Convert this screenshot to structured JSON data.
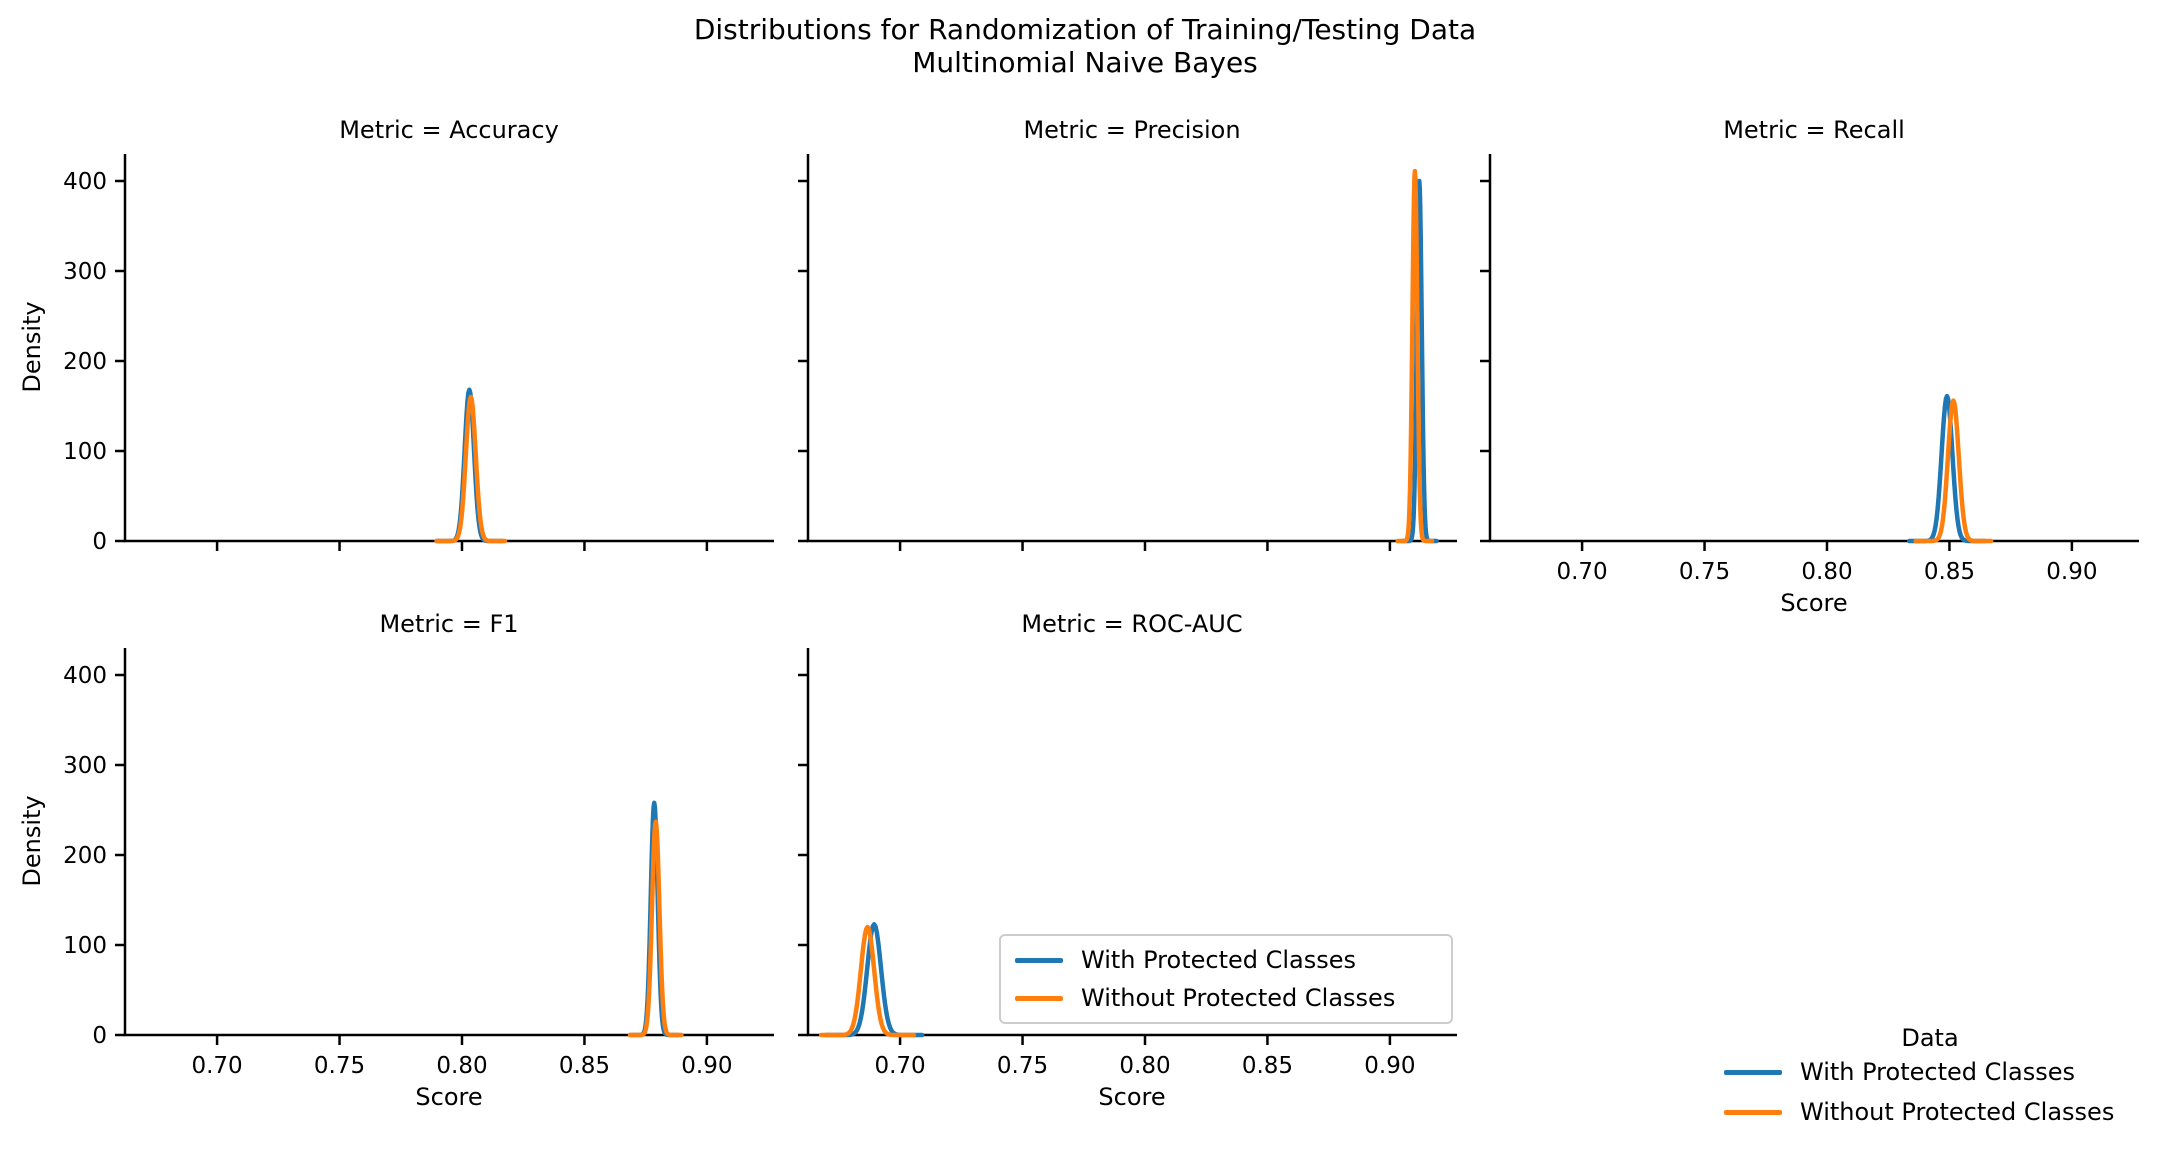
{
  "figure": {
    "title_line1": "Distributions for Randomization of Training/Testing Data",
    "title_line2": "Multinomial Naive Bayes"
  },
  "colors": {
    "with_protected": "#1f77b4",
    "without_protected": "#ff7f0e",
    "axis": "#000000",
    "text": "#000000",
    "legend_border": "#cccccc"
  },
  "series": [
    {
      "label": "With Protected Classes",
      "color": "#1f77b4"
    },
    {
      "label": "Without Protected Classes",
      "color": "#ff7f0e"
    }
  ],
  "figure_legend": {
    "title": "Data"
  },
  "chart_data": {
    "type": "line",
    "kind": "kde-distribution-facets",
    "x_axis": {
      "label": "Score",
      "ticks": [
        0.7,
        0.75,
        0.8,
        0.85,
        0.9
      ],
      "tick_labels": [
        "0.70",
        "0.75",
        "0.80",
        "0.85",
        "0.90"
      ],
      "range": [
        0.6624,
        0.9274
      ]
    },
    "y_axis": {
      "label": "Density",
      "ticks": [
        0,
        100,
        200,
        300,
        400
      ],
      "tick_labels": [
        "0",
        "100",
        "200",
        "300",
        "400"
      ],
      "range": [
        0,
        430
      ]
    },
    "legend_position": "inside ROC-AUC facet + figure lower right",
    "facets": [
      {
        "title": "Metric = Accuracy",
        "row": 0,
        "col": 0,
        "show_x_tick_labels": false,
        "show_y_tick_labels": true,
        "series": [
          {
            "name": "With Protected Classes",
            "peak_score": 0.803,
            "peak_density": 168,
            "spread_std": 0.0019
          },
          {
            "name": "Without Protected Classes",
            "peak_score": 0.8036,
            "peak_density": 160,
            "spread_std": 0.002
          }
        ]
      },
      {
        "title": "Metric = Precision",
        "row": 0,
        "col": 1,
        "show_x_tick_labels": false,
        "show_y_tick_labels": false,
        "series": [
          {
            "name": "With Protected Classes",
            "peak_score": 0.912,
            "peak_density": 400,
            "spread_std": 0.001
          },
          {
            "name": "Without Protected Classes",
            "peak_score": 0.9102,
            "peak_density": 411,
            "spread_std": 0.001
          }
        ]
      },
      {
        "title": "Metric = Recall",
        "row": 0,
        "col": 2,
        "show_x_tick_labels": true,
        "show_y_tick_labels": false,
        "series": [
          {
            "name": "With Protected Classes",
            "peak_score": 0.849,
            "peak_density": 161,
            "spread_std": 0.0022
          },
          {
            "name": "Without Protected Classes",
            "peak_score": 0.8516,
            "peak_density": 156,
            "spread_std": 0.0022
          }
        ]
      },
      {
        "title": "Metric = F1",
        "row": 1,
        "col": 0,
        "show_x_tick_labels": true,
        "show_y_tick_labels": true,
        "series": [
          {
            "name": "With Protected Classes",
            "peak_score": 0.8785,
            "peak_density": 258,
            "spread_std": 0.0014
          },
          {
            "name": "Without Protected Classes",
            "peak_score": 0.8791,
            "peak_density": 237,
            "spread_std": 0.0015
          }
        ]
      },
      {
        "title": "Metric = ROC-AUC",
        "row": 1,
        "col": 1,
        "show_x_tick_labels": true,
        "show_y_tick_labels": false,
        "series": [
          {
            "name": "With Protected Classes",
            "peak_score": 0.6894,
            "peak_density": 123,
            "spread_std": 0.0028
          },
          {
            "name": "Without Protected Classes",
            "peak_score": 0.6867,
            "peak_density": 120,
            "spread_std": 0.0027
          }
        ]
      }
    ]
  }
}
